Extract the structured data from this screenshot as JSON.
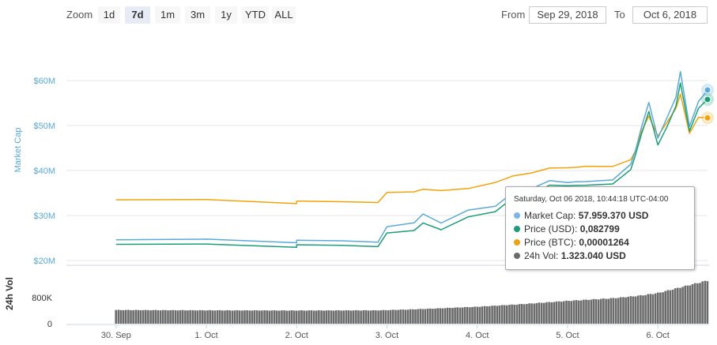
{
  "zoom": {
    "label": "Zoom",
    "buttons": [
      "1d",
      "7d",
      "1m",
      "3m",
      "1y",
      "YTD",
      "ALL"
    ],
    "active": "7d"
  },
  "range": {
    "from_label": "From",
    "from_value": "Sep 29, 2018",
    "to_label": "To",
    "to_value": "Oct 6, 2018"
  },
  "tooltip": {
    "header": "Saturday, Oct 06 2018, 10:44:18 UTC-04:00",
    "rows": [
      {
        "label": "Market Cap:",
        "value": "57.959.370 USD",
        "color": "#7cb5ec"
      },
      {
        "label": "Price (USD):",
        "value": "0,082799",
        "color": "#1b9e77"
      },
      {
        "label": "Price (BTC):",
        "value": "0,00001264",
        "color": "#f0a30a"
      },
      {
        "label": "24h Vol:",
        "value": "1.323.040 USD",
        "color": "#6b6b6b"
      }
    ]
  },
  "chart_data": {
    "type": "line",
    "ylabel": "Market Cap",
    "yticks": [
      "$20M",
      "$30M",
      "$40M",
      "$50M",
      "$60M"
    ],
    "ylim": [
      20,
      60
    ],
    "xticks": [
      "30. Sep",
      "1. Oct",
      "2. Oct",
      "3. Oct",
      "4. Oct",
      "5. Oct",
      "6. Oct"
    ],
    "x": [
      0.0,
      1.0,
      2.0,
      2.0,
      2.5,
      2.9,
      3.0,
      3.3,
      3.4,
      3.6,
      3.9,
      4.2,
      4.4,
      4.6,
      4.8,
      5.0,
      5.1,
      5.2,
      5.5,
      5.7,
      5.75,
      5.82,
      5.9,
      6.0,
      6.1,
      6.2,
      6.25,
      6.35,
      6.45,
      6.55
    ],
    "series": [
      {
        "name": "Market Cap",
        "color": "#5aa9d6",
        "values": [
          24.6,
          24.5,
          24.3,
          24.3,
          24.3,
          24.4,
          27.2,
          28.5,
          30.5,
          28.0,
          31.5,
          32.0,
          35.0,
          36.3,
          37.5,
          37.3,
          37.8,
          37.2,
          38.1,
          41.5,
          44.0,
          50.0,
          55.0,
          47.0,
          52.0,
          56.0,
          62.0,
          50.0,
          55.0,
          57.9
        ]
      },
      {
        "name": "Price (USD)",
        "color": "#1b9e77",
        "values": [
          23.6,
          23.4,
          23.3,
          23.3,
          23.3,
          23.4,
          25.8,
          26.8,
          28.5,
          26.5,
          30.0,
          30.8,
          33.8,
          35.0,
          36.5,
          36.6,
          37.0,
          36.4,
          37.2,
          40.3,
          43.0,
          48.5,
          53.0,
          45.5,
          50.0,
          54.0,
          59.5,
          49.0,
          53.5,
          55.8
        ]
      },
      {
        "name": "Price (BTC)",
        "color": "#f0a30a",
        "values": [
          33.5,
          33.3,
          33.0,
          33.0,
          33.0,
          33.2,
          34.8,
          35.4,
          36.0,
          35.2,
          36.3,
          37.3,
          38.6,
          39.8,
          40.3,
          40.6,
          41.0,
          40.6,
          41.1,
          42.5,
          44.0,
          49.0,
          52.0,
          47.5,
          51.0,
          53.5,
          57.0,
          48.5,
          51.5,
          51.7
        ]
      }
    ],
    "volume": {
      "ylabel": "24h Vol",
      "yticks": [
        "0",
        "800K"
      ],
      "ylim": [
        0,
        1600000
      ],
      "x": [
        0.0,
        1.0,
        2.0,
        2.9,
        3.3,
        4.0,
        4.5,
        5.0,
        5.5,
        5.8,
        6.0,
        6.3,
        6.55
      ],
      "values": [
        420000,
        410000,
        405000,
        410000,
        440000,
        520000,
        600000,
        700000,
        780000,
        860000,
        940000,
        1150000,
        1323040
      ]
    }
  }
}
